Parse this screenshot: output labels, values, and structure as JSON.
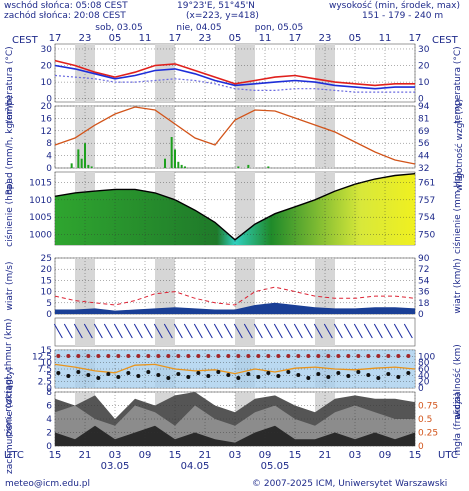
{
  "header": {
    "sunrise": "wschód słońca: 05:08 CEST",
    "sunset": "zachód słońca: 20:08 CEST",
    "coords": "19°23'E, 51°45'N",
    "grid": "(x=223,  y=418)",
    "elevation_title": "wysokość (min, środek, max)",
    "elevation_values": "151 - 179 - 240 m"
  },
  "time_axis": {
    "top_label": "CEST",
    "top_label_right": "CEST",
    "days_top": [
      "sob, 03.05",
      "nie, 04.05",
      "pon, 05.05"
    ],
    "hours_top": [
      "17",
      "23",
      "05",
      "11",
      "17",
      "23",
      "05",
      "11",
      "17",
      "23",
      "05",
      "11",
      "17"
    ],
    "bottom_label": "UTC",
    "bottom_label_right": "UTC",
    "hours_bottom": [
      "15",
      "21",
      "03",
      "09",
      "15",
      "21",
      "03",
      "09",
      "15",
      "21",
      "03",
      "09",
      "15"
    ],
    "dates_bottom": [
      "03.05",
      "04.05",
      "05.05"
    ]
  },
  "footer": {
    "email": "meteo@icm.edu.pl",
    "copyright": "© 2007-2025 ICM, Uniwersytet Warszawski"
  },
  "chart_data": [
    {
      "type": "line",
      "name": "temperature",
      "ylabel_left": "temperatura (°C)",
      "ylabel_right": "temperatura (°C)",
      "yticks": [
        0,
        10,
        20,
        30
      ],
      "ylim": [
        -2,
        33
      ],
      "x_hours": [
        0,
        6,
        12,
        18,
        24,
        30,
        36,
        42,
        48,
        54,
        60,
        66,
        72,
        78,
        84,
        90,
        96,
        102,
        108
      ],
      "series": [
        {
          "values": [
            23,
            20,
            16,
            13,
            16,
            20,
            21,
            17,
            13,
            9,
            11,
            13,
            14,
            12,
            10,
            9,
            8,
            9,
            9
          ],
          "color": "#e0201c"
        },
        {
          "values": [
            20,
            18,
            15,
            12,
            14,
            17,
            18,
            15,
            11,
            8,
            9,
            10,
            11,
            10,
            8,
            7,
            6,
            7,
            7
          ],
          "color": "#1d2dd8"
        },
        {
          "values": [
            14,
            13,
            12,
            10,
            10,
            11,
            12,
            11,
            9,
            6,
            5,
            5,
            6,
            6,
            5,
            4,
            4,
            4,
            4
          ],
          "color": "#6a6ae0"
        }
      ]
    },
    {
      "type": "line",
      "name": "precipitation-humidity",
      "ylabel_left": "opad (mm/h, kg/m²/h)",
      "ylabel_right": "wilgotność wzgl. (%)",
      "yticks_left": [
        0,
        4,
        8,
        12,
        16,
        20
      ],
      "yticks_right": [
        32,
        44,
        56,
        69,
        81,
        94
      ],
      "ylim": [
        0,
        20
      ],
      "x_hours": [
        0,
        6,
        12,
        18,
        24,
        30,
        36,
        42,
        48,
        54,
        60,
        66,
        72,
        78,
        84,
        90,
        96,
        102,
        108
      ],
      "humidity": [
        55,
        62,
        75,
        86,
        93,
        90,
        76,
        62,
        55,
        80,
        90,
        89,
        82,
        75,
        68,
        58,
        48,
        40,
        36
      ],
      "precip_hours": [
        5,
        7,
        8,
        9,
        10,
        11,
        33,
        35,
        36,
        37,
        38,
        39,
        55,
        58,
        64
      ],
      "precip_values": [
        1.5,
        6,
        3,
        8,
        1,
        0.5,
        3,
        10,
        6,
        2,
        1,
        0.5,
        0.5,
        1,
        0.5
      ]
    },
    {
      "type": "area",
      "name": "pressure",
      "ylabel_left": "ciśnienie (hPa)",
      "ylabel_right": "ciśnienie (mm Hg)",
      "yticks_left": [
        1000,
        1005,
        1010,
        1015
      ],
      "yticks_right": [
        750,
        754,
        757,
        761
      ],
      "ylim": [
        997,
        1018
      ],
      "x_hours": [
        0,
        6,
        12,
        18,
        24,
        30,
        36,
        42,
        48,
        54,
        60,
        66,
        72,
        78,
        84,
        90,
        96,
        102,
        108
      ],
      "values": [
        1011,
        1012,
        1012.5,
        1013,
        1013,
        1012,
        1010,
        1007,
        1003.5,
        998.5,
        1003,
        1006,
        1008,
        1010,
        1012.5,
        1014.5,
        1016,
        1017,
        1017.5
      ]
    },
    {
      "type": "line",
      "name": "wind",
      "ylabel_left": "wiatr (m/s)",
      "ylabel_right": "wiatr (km/h)",
      "yticks_left": [
        0,
        5,
        10,
        15,
        20,
        25
      ],
      "yticks_right": [
        0,
        18,
        36,
        54,
        72,
        90
      ],
      "ylim": [
        0,
        25
      ],
      "x_hours": [
        0,
        6,
        12,
        18,
        24,
        30,
        36,
        42,
        48,
        54,
        60,
        66,
        72,
        78,
        84,
        90,
        96,
        102,
        108
      ],
      "mean": [
        2,
        2,
        2.5,
        1.5,
        2,
        2.5,
        3,
        2.5,
        2,
        2,
        4,
        5,
        4,
        3,
        2.5,
        2.5,
        3,
        3,
        2.5
      ],
      "gusts": [
        8,
        6,
        5,
        4,
        6,
        9,
        10,
        7,
        5,
        4,
        10,
        12,
        10,
        8,
        7,
        7,
        8,
        8,
        7
      ]
    },
    {
      "type": "scatter",
      "name": "visibility",
      "ylabel_left": "pion. rozciągł. chmur (km)",
      "ylabel_right": "widzialność (km)",
      "yticks_left": [
        0,
        2.5,
        5,
        7.5,
        10,
        12.5,
        15
      ],
      "yticks_right": [
        0,
        20,
        40,
        60,
        80,
        100
      ],
      "ylim": [
        0,
        15
      ],
      "x_hours": [
        0,
        6,
        12,
        18,
        24,
        30,
        36,
        42,
        48,
        54,
        60,
        66,
        72,
        78,
        84,
        90,
        96,
        102,
        108
      ],
      "visibility": [
        62,
        55,
        45,
        40,
        60,
        62,
        50,
        45,
        48,
        38,
        50,
        42,
        52,
        55,
        50,
        48,
        52,
        55,
        50
      ]
    },
    {
      "type": "area",
      "name": "cloud-cover",
      "ylabel_left": "zachmurzenie (oktanty)",
      "ylabel_right": "mgła (frakcja)",
      "yticks_left": [
        0,
        2,
        4,
        6,
        8
      ],
      "yticks_right": [
        0,
        0.25,
        0.5,
        0.75
      ],
      "ylim": [
        0,
        8
      ],
      "x_hours": [
        0,
        6,
        12,
        18,
        24,
        30,
        36,
        42,
        48,
        54,
        60,
        66,
        72,
        78,
        84,
        90,
        96,
        102,
        108
      ],
      "high": [
        7,
        6,
        7.5,
        4,
        7,
        6,
        7.5,
        8,
        6,
        5,
        7,
        7.5,
        6,
        5,
        7,
        7.5,
        7,
        7,
        6.5
      ],
      "mid": [
        5,
        6,
        4,
        3,
        6,
        5,
        3,
        6,
        4,
        3,
        5,
        6,
        4,
        3,
        5,
        6,
        5,
        4,
        4
      ],
      "low": [
        2,
        1,
        3,
        1,
        2,
        3,
        1,
        2,
        1,
        0.5,
        2,
        3,
        1,
        1,
        2,
        1,
        2,
        1,
        2
      ]
    }
  ]
}
